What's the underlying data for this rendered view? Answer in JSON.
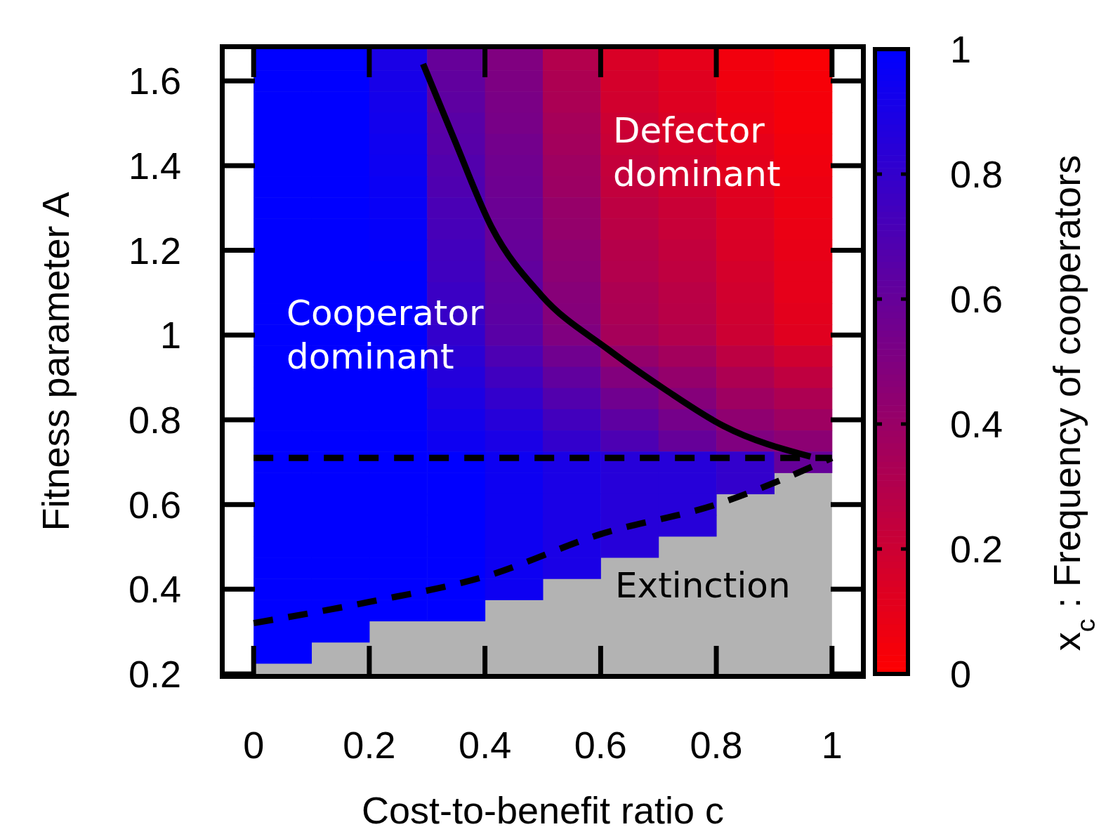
{
  "chart_data": {
    "type": "heatmap",
    "xlabel": "Cost-to-benefit ratio c",
    "ylabel": "Fitness parameter A",
    "clabel": "x$_{c}$ : Frequency of cooperators",
    "x": [
      0.05,
      0.15,
      0.25,
      0.35,
      0.45,
      0.55,
      0.65,
      0.75,
      0.85,
      0.95
    ],
    "y": [
      1.65,
      1.6,
      1.55,
      1.5,
      1.45,
      1.4,
      1.35,
      1.3,
      1.25,
      1.2,
      1.15,
      1.1,
      1.05,
      1.0,
      0.95,
      0.9,
      0.85,
      0.8,
      0.75,
      0.7,
      0.65,
      0.6,
      0.55,
      0.5,
      0.45,
      0.4,
      0.35,
      0.3,
      0.25
    ],
    "cells": [
      [
        1,
        1,
        0.9,
        0.6,
        0.5,
        0.3,
        0.15,
        0.1,
        0.05,
        0.02
      ],
      [
        1,
        1,
        0.91,
        0.62,
        0.51,
        0.32,
        0.17,
        0.12,
        0.06,
        0.03
      ],
      [
        1,
        1,
        0.92,
        0.63,
        0.52,
        0.33,
        0.18,
        0.13,
        0.07,
        0.04
      ],
      [
        1,
        1,
        0.93,
        0.65,
        0.53,
        0.35,
        0.2,
        0.15,
        0.08,
        0.04
      ],
      [
        1,
        1,
        0.94,
        0.66,
        0.55,
        0.36,
        0.21,
        0.16,
        0.1,
        0.05
      ],
      [
        1,
        1,
        0.95,
        0.68,
        0.56,
        0.38,
        0.23,
        0.18,
        0.11,
        0.06
      ],
      [
        1,
        1,
        0.96,
        0.69,
        0.57,
        0.39,
        0.24,
        0.19,
        0.12,
        0.07
      ],
      [
        1,
        1,
        0.97,
        0.71,
        0.58,
        0.41,
        0.26,
        0.21,
        0.13,
        0.07
      ],
      [
        1,
        1,
        0.98,
        0.72,
        0.59,
        0.42,
        0.27,
        0.22,
        0.14,
        0.08
      ],
      [
        1,
        1,
        0.99,
        0.74,
        0.6,
        0.44,
        0.29,
        0.24,
        0.15,
        0.09
      ],
      [
        1,
        1,
        1,
        0.75,
        0.62,
        0.45,
        0.3,
        0.25,
        0.17,
        0.1
      ],
      [
        1,
        1,
        1,
        0.77,
        0.63,
        0.47,
        0.32,
        0.27,
        0.18,
        0.1
      ],
      [
        1,
        1,
        1,
        0.78,
        0.64,
        0.48,
        0.33,
        0.28,
        0.19,
        0.11
      ],
      [
        1,
        1,
        1,
        0.8,
        0.65,
        0.5,
        0.35,
        0.3,
        0.2,
        0.12
      ],
      [
        1,
        1,
        1,
        0.83,
        0.7,
        0.56,
        0.42,
        0.36,
        0.26,
        0.19
      ],
      [
        1,
        1,
        1,
        0.86,
        0.75,
        0.62,
        0.49,
        0.42,
        0.32,
        0.25
      ],
      [
        1,
        1,
        1,
        0.89,
        0.8,
        0.68,
        0.56,
        0.48,
        0.38,
        0.32
      ],
      [
        1,
        1,
        1,
        0.92,
        0.85,
        0.74,
        0.63,
        0.54,
        0.44,
        0.38
      ],
      [
        1,
        1,
        1,
        0.95,
        0.9,
        0.8,
        0.7,
        0.6,
        0.5,
        0.45
      ],
      [
        1,
        1,
        1,
        1,
        0.95,
        0.9,
        0.85,
        0.85,
        0.8,
        0.6
      ],
      [
        1,
        1,
        1,
        1,
        0.95,
        0.9,
        0.85,
        0.85,
        0.8,
        null
      ],
      [
        1,
        1,
        1,
        1,
        0.95,
        0.9,
        0.85,
        0.85,
        null,
        null
      ],
      [
        1,
        1,
        1,
        1,
        0.95,
        0.9,
        0.85,
        0.85,
        null,
        null
      ],
      [
        1,
        1,
        1,
        1,
        0.95,
        0.9,
        0.85,
        null,
        null,
        null
      ],
      [
        1,
        1,
        1,
        1,
        0.95,
        0.9,
        null,
        null,
        null,
        null
      ],
      [
        1,
        1,
        1,
        1,
        0.95,
        null,
        null,
        null,
        null,
        null
      ],
      [
        1,
        1,
        1,
        1,
        null,
        null,
        null,
        null,
        null,
        null
      ],
      [
        1,
        1,
        null,
        null,
        null,
        null,
        null,
        null,
        null,
        null
      ],
      [
        1,
        null,
        null,
        null,
        null,
        null,
        null,
        null,
        null,
        null
      ]
    ],
    "xlim": [
      -0.05,
      1.05
    ],
    "xticks": [
      0,
      0.2,
      0.4,
      0.6,
      0.8,
      1
    ],
    "ylim": [
      0.2,
      1.675
    ],
    "yticks": [
      0.2,
      0.4,
      0.6,
      0.8,
      1,
      1.2,
      1.4,
      1.6
    ],
    "clim": [
      0,
      1
    ],
    "cticks": [
      0,
      0.2,
      0.4,
      0.6,
      0.8,
      1
    ],
    "series": [
      {
        "type": "line",
        "color": "#000000",
        "line_style": "solid",
        "x": [
          0.293,
          0.346,
          0.411,
          0.498,
          0.612,
          0.712,
          0.813,
          0.963
        ],
        "values": [
          1.64,
          1.465,
          1.256,
          1.093,
          0.967,
          0.871,
          0.785,
          0.713
        ]
      },
      {
        "type": "line",
        "color": "#000000",
        "line_style": "dashed",
        "x": [
          0,
          1
        ],
        "values": [
          0.71,
          0.71
        ]
      },
      {
        "type": "line",
        "color": "#000000",
        "line_style": "dashed",
        "x": [
          0,
          0.2,
          0.4,
          0.6,
          0.8,
          1
        ],
        "values": [
          0.32,
          0.37,
          0.43,
          0.53,
          0.6,
          0.71
        ]
      }
    ],
    "annotations": [
      "Cooperator dominant",
      "Defector dominant",
      "Extinction"
    ]
  }
}
